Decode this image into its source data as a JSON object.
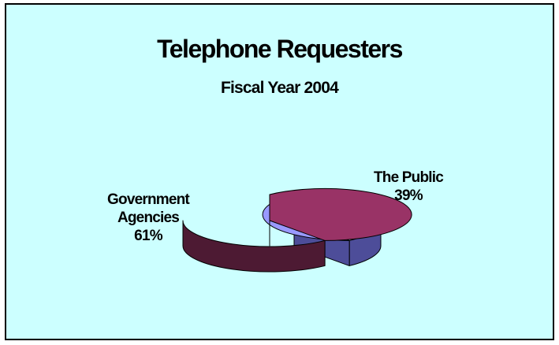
{
  "chart_data": {
    "type": "pie",
    "title": "Telephone Requesters",
    "subtitle": "Fiscal Year 2004",
    "slices": [
      {
        "name_lines": [
          "The Public"
        ],
        "value": 39,
        "pct_label": "39%",
        "top_color": "#9999ff",
        "side_color": "#4d4d99"
      },
      {
        "name_lines": [
          "Government",
          "Agencies"
        ],
        "value": 61,
        "pct_label": "61%",
        "top_color": "#993366",
        "side_color": "#4d1a33"
      }
    ],
    "background_color": "#ccffff"
  }
}
